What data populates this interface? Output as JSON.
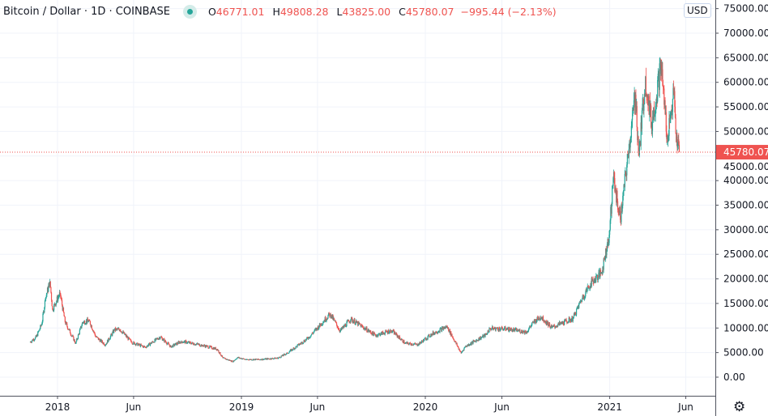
{
  "header": {
    "symbol": "Bitcoin / Dollar · 1D · COINBASE",
    "open_label": "O",
    "open": "46771.01",
    "high_label": "H",
    "high": "49808.28",
    "low_label": "L",
    "low": "43825.00",
    "close_label": "C",
    "close": "45780.07",
    "change": "−995.44 (−2.13%)"
  },
  "currency_label": "USD",
  "colors": {
    "up": "#26a69a",
    "down": "#ef5350",
    "grid": "#f0f3fa"
  },
  "chart_data": {
    "type": "candlestick",
    "title": "Bitcoin / Dollar · 1D · COINBASE",
    "ylim": [
      -3000,
      77000
    ],
    "y_ticks": [
      0,
      5000,
      10000,
      15000,
      20000,
      25000,
      30000,
      35000,
      40000,
      45000,
      50000,
      55000,
      60000,
      65000,
      70000,
      75000
    ],
    "y_tick_labels": [
      "0.00",
      "5000.00",
      "10000.00",
      "15000.00",
      "20000.00",
      "25000.00",
      "30000.00",
      "35000.00",
      "40000.00",
      "45000.00",
      "50000.00",
      "55000.00",
      "60000.00",
      "65000.00",
      "70000.00",
      "75000.00"
    ],
    "x_ticks": [
      {
        "date": "2018-01-01",
        "label": "2018"
      },
      {
        "date": "2018-06-01",
        "label": "Jun"
      },
      {
        "date": "2019-01-01",
        "label": "2019"
      },
      {
        "date": "2019-06-01",
        "label": "Jun"
      },
      {
        "date": "2020-01-01",
        "label": "2020"
      },
      {
        "date": "2020-06-01",
        "label": "Jun"
      },
      {
        "date": "2021-01-01",
        "label": "2021"
      },
      {
        "date": "2021-06-01",
        "label": "Jun"
      }
    ],
    "last_price": 45780.07,
    "last_price_label": "45780.07",
    "closes": [
      [
        "2017-11-07",
        7100
      ],
      [
        "2017-11-20",
        8200
      ],
      [
        "2017-12-01",
        10900
      ],
      [
        "2017-12-08",
        16000
      ],
      [
        "2017-12-17",
        19500
      ],
      [
        "2017-12-22",
        13800
      ],
      [
        "2018-01-06",
        17100
      ],
      [
        "2018-01-16",
        11200
      ],
      [
        "2018-02-06",
        6900
      ],
      [
        "2018-02-20",
        11200
      ],
      [
        "2018-03-05",
        11500
      ],
      [
        "2018-03-18",
        8200
      ],
      [
        "2018-04-06",
        6600
      ],
      [
        "2018-04-24",
        9600
      ],
      [
        "2018-05-05",
        9700
      ],
      [
        "2018-05-28",
        7100
      ],
      [
        "2018-06-24",
        6100
      ],
      [
        "2018-07-24",
        8200
      ],
      [
        "2018-08-14",
        6200
      ],
      [
        "2018-09-04",
        7300
      ],
      [
        "2018-10-15",
        6500
      ],
      [
        "2018-11-14",
        5700
      ],
      [
        "2018-11-25",
        3900
      ],
      [
        "2018-12-15",
        3200
      ],
      [
        "2018-12-24",
        4000
      ],
      [
        "2019-01-10",
        3600
      ],
      [
        "2019-02-08",
        3600
      ],
      [
        "2019-03-15",
        3900
      ],
      [
        "2019-04-02",
        4900
      ],
      [
        "2019-05-14",
        8000
      ],
      [
        "2019-06-26",
        12900
      ],
      [
        "2019-07-16",
        9400
      ],
      [
        "2019-08-06",
        11800
      ],
      [
        "2019-09-24",
        8500
      ],
      [
        "2019-10-26",
        9500
      ],
      [
        "2019-11-22",
        6900
      ],
      [
        "2019-12-17",
        6600
      ],
      [
        "2020-01-14",
        8800
      ],
      [
        "2020-02-13",
        10300
      ],
      [
        "2020-03-12",
        4900
      ],
      [
        "2020-03-20",
        6200
      ],
      [
        "2020-04-30",
        8600
      ],
      [
        "2020-05-08",
        9900
      ],
      [
        "2020-06-10",
        9800
      ],
      [
        "2020-07-20",
        9200
      ],
      [
        "2020-08-02",
        11100
      ],
      [
        "2020-08-17",
        12300
      ],
      [
        "2020-09-08",
        10100
      ],
      [
        "2020-10-20",
        11900
      ],
      [
        "2020-11-05",
        15600
      ],
      [
        "2020-11-24",
        19100
      ],
      [
        "2020-12-16",
        21300
      ],
      [
        "2020-12-31",
        29000
      ],
      [
        "2021-01-08",
        40600
      ],
      [
        "2021-01-22",
        32000
      ],
      [
        "2021-02-08",
        46400
      ],
      [
        "2021-02-21",
        57500
      ],
      [
        "2021-02-28",
        45200
      ],
      [
        "2021-03-13",
        61200
      ],
      [
        "2021-03-25",
        51300
      ],
      [
        "2021-04-13",
        63500
      ],
      [
        "2021-04-25",
        49000
      ],
      [
        "2021-05-09",
        58200
      ],
      [
        "2021-05-12",
        49600
      ],
      [
        "2021-05-19",
        45780
      ]
    ]
  }
}
